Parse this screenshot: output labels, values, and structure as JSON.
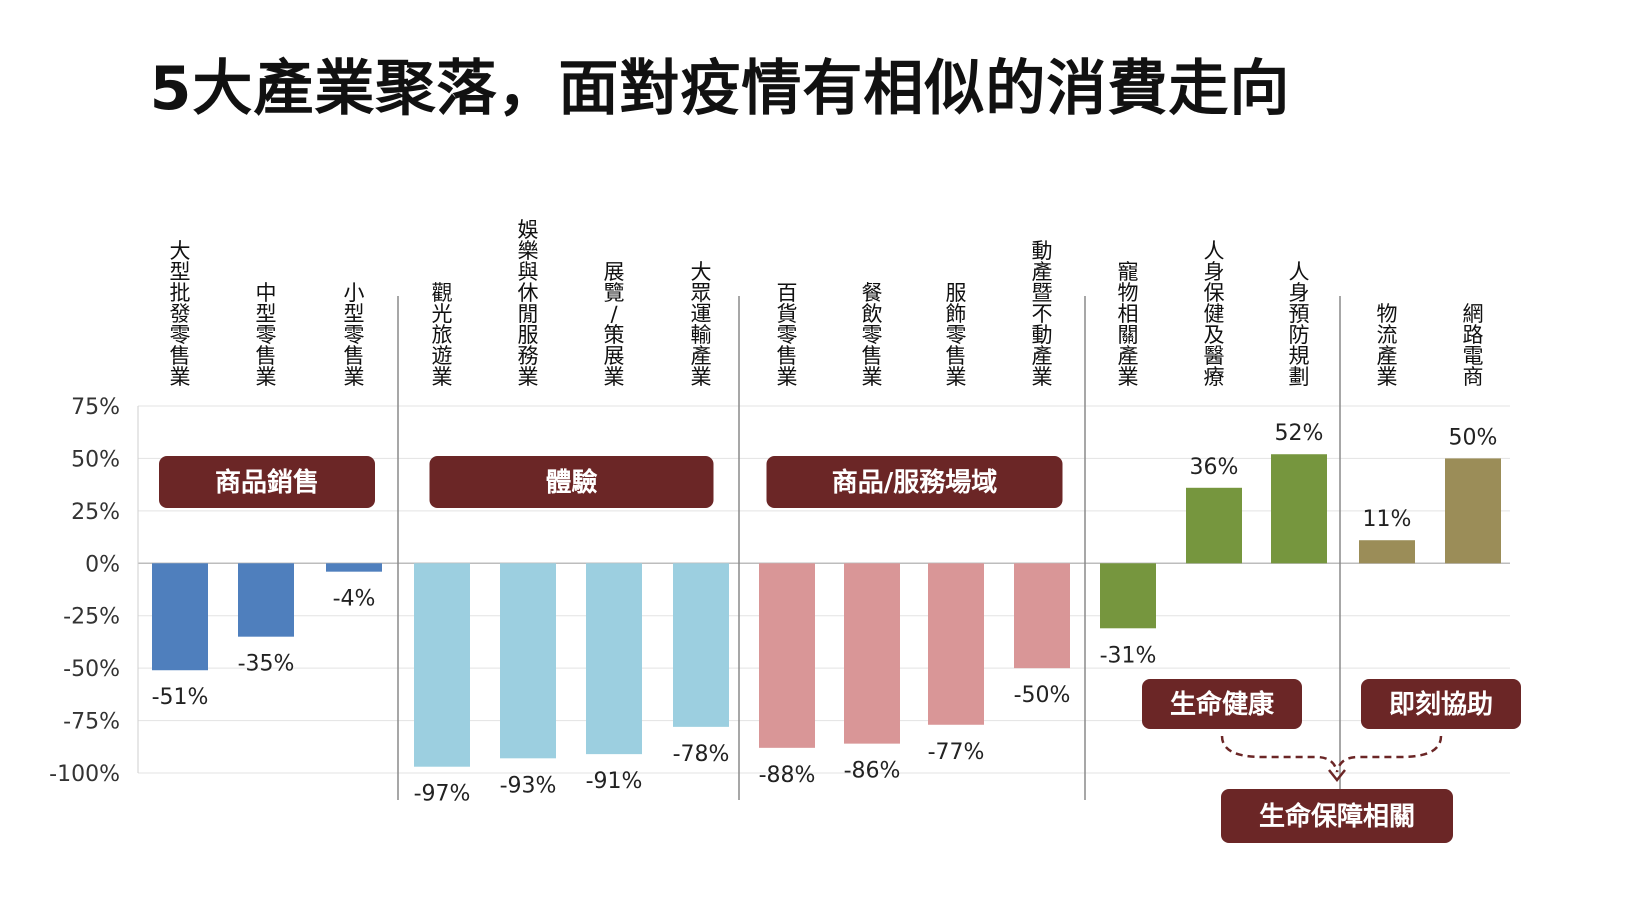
{
  "title": "5大產業聚落，面對疫情有相似的消費走向",
  "chart_data": {
    "type": "bar",
    "ylim": [
      -100,
      75
    ],
    "yticks": [
      75,
      50,
      25,
      0,
      -25,
      -50,
      -75,
      -100
    ],
    "grid": true,
    "categories": [
      "大型批發零售業",
      "中型零售業",
      "小型零售業",
      "觀光旅遊業",
      "娛樂與休閒服務業",
      "展覽/策展業",
      "大眾運輸產業",
      "百貨零售業",
      "餐飲零售業",
      "服飾零售業",
      "動產暨不動產業",
      "寵物相關產業",
      "人身保健及醫療",
      "人身預防規劃",
      "物流產業",
      "網路電商"
    ],
    "values": [
      -51,
      -35,
      -4,
      -97,
      -93,
      -91,
      -78,
      -88,
      -86,
      -77,
      -50,
      -31,
      36,
      52,
      11,
      50
    ],
    "value_labels": [
      "-51%",
      "-35%",
      "-4%",
      "-97%",
      "-93%",
      "-91%",
      "-78%",
      "-88%",
      "-86%",
      "-77%",
      "-50%",
      "-31%",
      "36%",
      "52%",
      "11%",
      "50%"
    ],
    "colors": [
      "#4f7fbd",
      "#4f7fbd",
      "#4f7fbd",
      "#9ccfe0",
      "#9ccfe0",
      "#9ccfe0",
      "#9ccfe0",
      "#d99697",
      "#d99697",
      "#d99697",
      "#d99697",
      "#76963e",
      "#76963e",
      "#76963e",
      "#9b8d58",
      "#9b8d58"
    ],
    "groups": [
      {
        "label": "商品銷售",
        "start": 0,
        "end": 2
      },
      {
        "label": "體驗",
        "start": 3,
        "end": 6
      },
      {
        "label": "商品/服務場域",
        "start": 7,
        "end": 10
      }
    ],
    "bottom_labels": [
      {
        "label": "生命健康",
        "start": 11,
        "end": 13
      },
      {
        "label": "即刻協助",
        "start": 14,
        "end": 15
      }
    ],
    "combined_label": "生命保障相關",
    "badge_color": "#6b2626"
  }
}
